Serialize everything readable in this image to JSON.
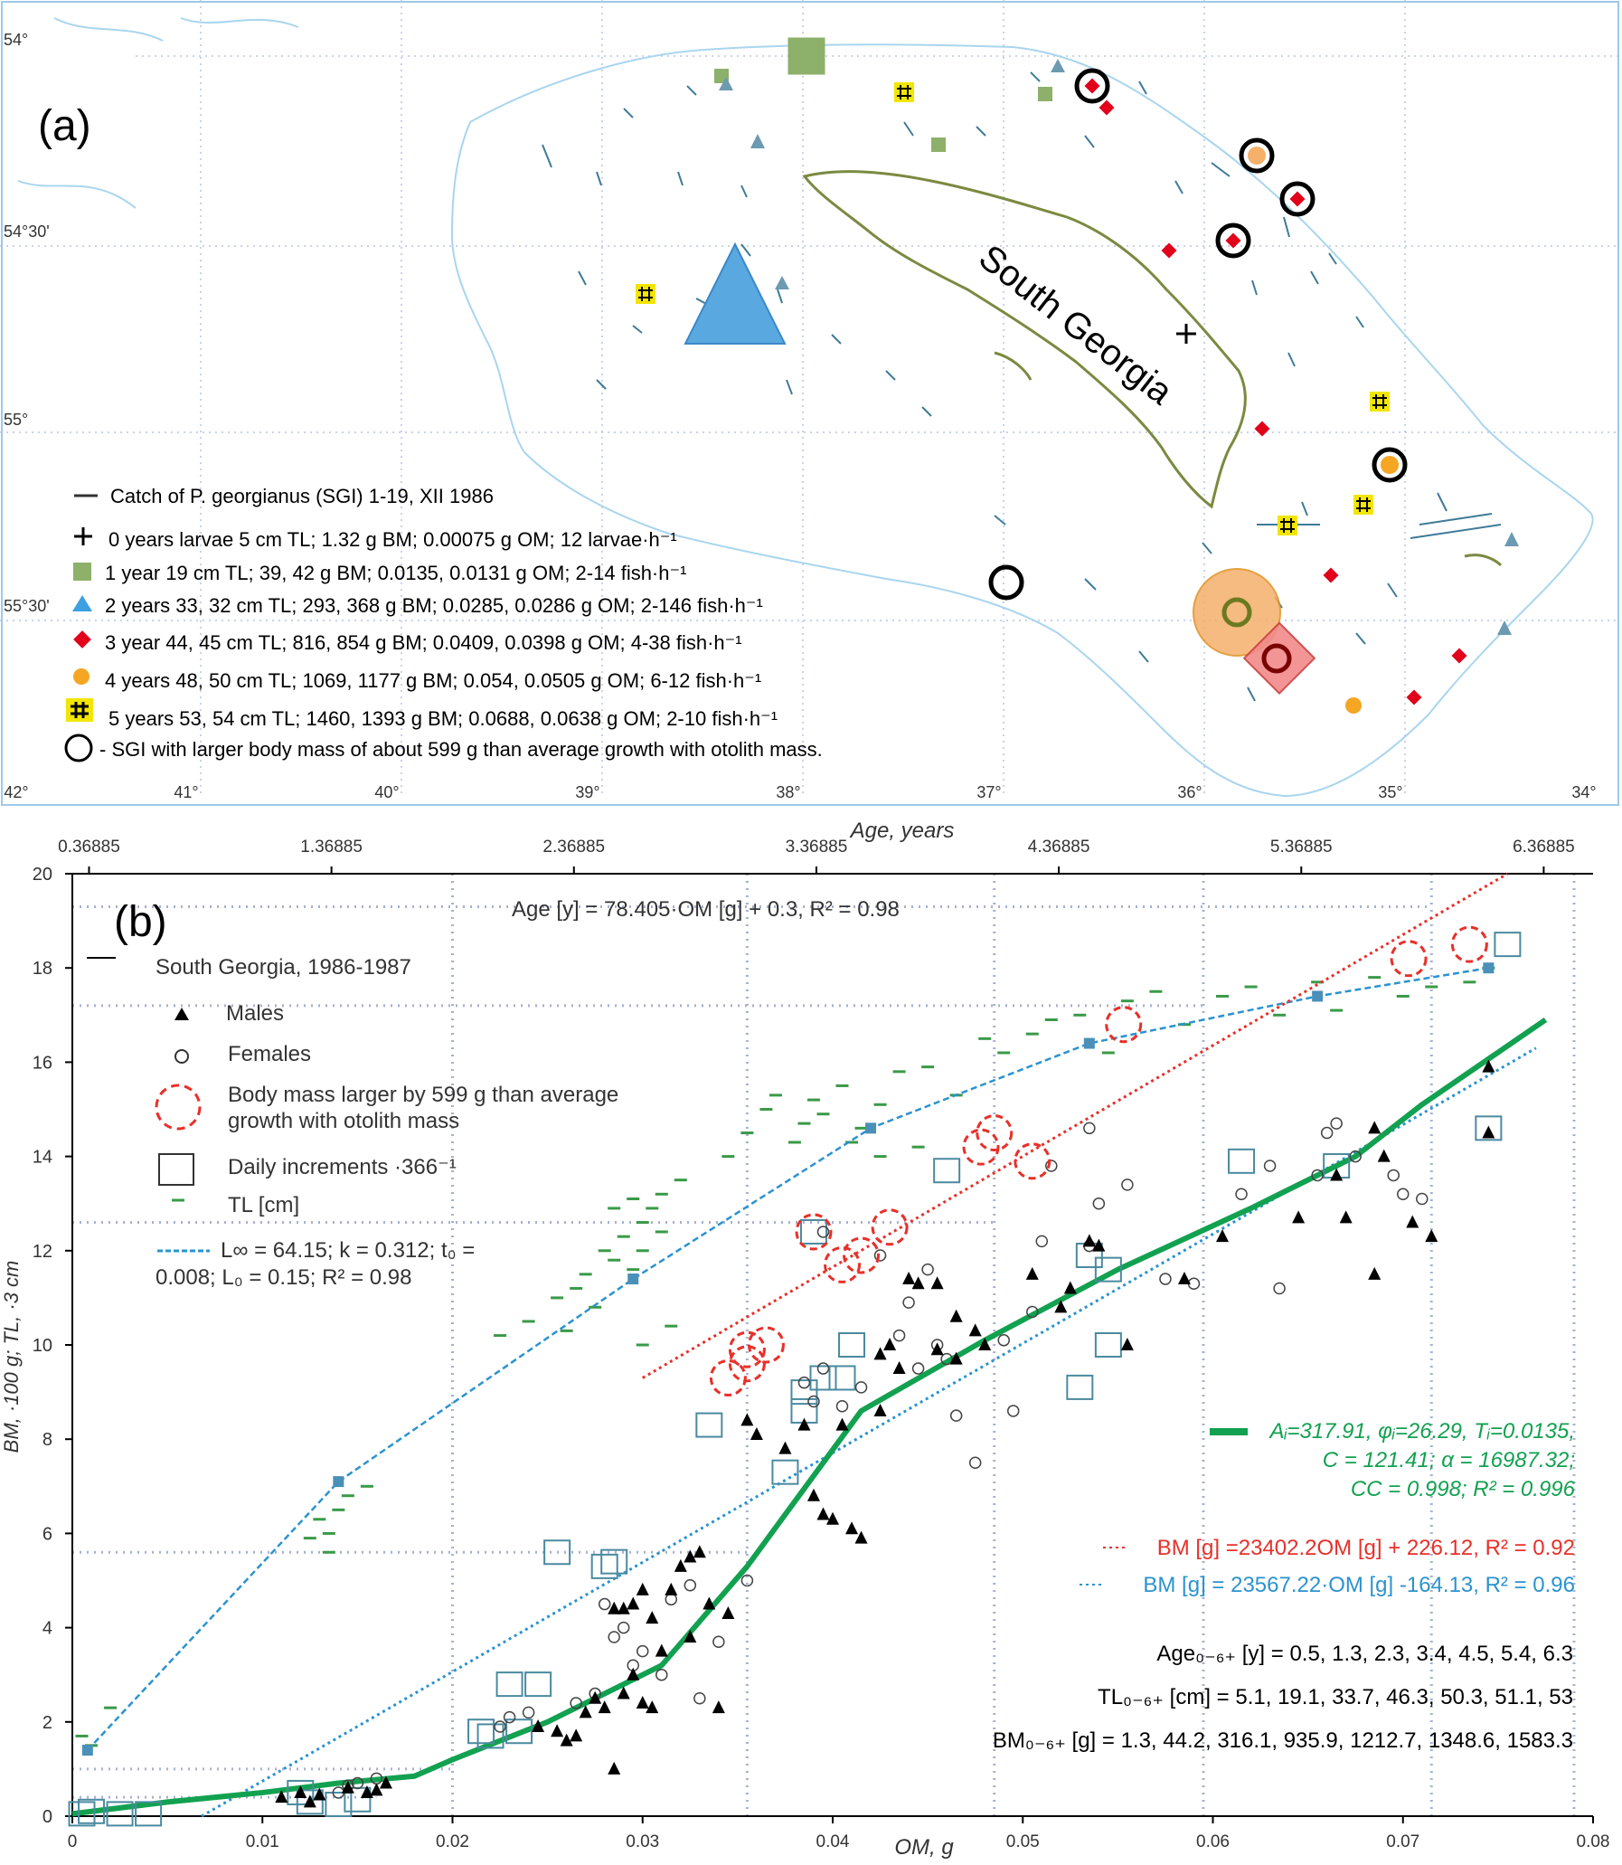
{
  "map": {
    "panel_label": "(a)",
    "island_label": "South Georgia",
    "lat_labels": [
      "54°",
      "54°30'",
      "55°",
      "55°30'"
    ],
    "lon_labels": [
      "42°",
      "41°",
      "40°",
      "39°",
      "38°",
      "37°",
      "36°",
      "35°",
      "34°"
    ],
    "legend": [
      {
        "symbol": "line",
        "color": "#333333",
        "text": "Catch of P. georgianus (SGI) 1-19, XII 1986"
      },
      {
        "symbol": "cross",
        "color": "#000000",
        "text": "0 years larvae 5 cm TL; 1.32 g BM; 0.00075 g OM; 12 larvae·h⁻¹"
      },
      {
        "symbol": "square",
        "color": "#8db06a",
        "text": "1 year 19 cm TL; 39, 42 g BM; 0.0135, 0.0131 g OM; 2-14 fish·h⁻¹"
      },
      {
        "symbol": "triangle",
        "color": "#3b9fe0",
        "text": "2 years 33, 32 cm TL; 293, 368 g BM; 0.0285, 0.0286 g OM; 2-146 fish·h⁻¹"
      },
      {
        "symbol": "diamond",
        "color": "#e2001a",
        "text": "3 year 44, 45 cm TL; 816, 854 g BM; 0.0409, 0.0398 g OM; 4-38 fish·h⁻¹"
      },
      {
        "symbol": "circle",
        "color": "#f5a623",
        "text": "4 years 48, 50 cm TL; 1069, 1177 g BM; 0.054, 0.0505 g OM; 6-12 fish·h⁻¹"
      },
      {
        "symbol": "hash",
        "color": "#f2e600",
        "text": "5 years 53, 54 cm TL; 1460, 1393 g BM; 0.0688, 0.0638 g OM; 2-10 fish·h⁻¹"
      },
      {
        "symbol": "ring",
        "color": "#000000",
        "text": "- SGI with larger body mass of about 599 g than average growth with otolith mass."
      }
    ]
  },
  "chart_data": {
    "type": "scatter",
    "panel_label": "(b)",
    "xlabel": "OM, g",
    "ylabel": "BM, ·100 g;  TL, ·3 cm",
    "top_axis_label": "Age, years",
    "xlim": [
      0,
      0.08
    ],
    "ylim": [
      0,
      20
    ],
    "x_ticks": [
      "0",
      "0.01",
      "0.02",
      "0.03",
      "0.04",
      "0.05",
      "0.06",
      "0.07",
      "0.08"
    ],
    "y_ticks": [
      "0",
      "2",
      "4",
      "6",
      "8",
      "10",
      "12",
      "14",
      "16",
      "18",
      "20"
    ],
    "top_ticks": [
      "0.36885",
      "1.36885",
      "2.36885",
      "3.36885",
      "4.36885",
      "5.36885",
      "6.36885"
    ],
    "age_equation": "Age [y] = 78.405·OM [g] + 0.3, R² = 0.98",
    "legend": {
      "title": "South Georgia, 1986-1987",
      "males": "Males",
      "females": "Females",
      "larger_mass_1": "Body mass larger by 599 g than average",
      "larger_mass_2": "growth with otolith mass",
      "daily": "Daily increments ·366⁻¹",
      "tl": "TL [cm]",
      "vb_1": "L∞ = 64.15; k = 0.312; t₀ =",
      "vb_2": "0.008; L₀ = 0.15; R² = 0.98"
    },
    "model_text_1": "Aᵢ=317.91, φᵢ=26.29, Tᵢ=0.0135,",
    "model_text_2": "C = 121.41; α = 16987.32;",
    "model_text_3": "CC = 0.998; R² = 0.996",
    "red_fit_text": "BM [g] =23402.2OM [g] + 226.12, R² = 0.92",
    "blue_fit_text": "BM [g] = 23567.22·OM [g] -164.13, R² = 0.96",
    "age_values_text": "Age₀₋₆₊ [y] = 0.5, 1.3, 2.3, 3.4, 4.5, 5.4, 6.3",
    "tl_values_text": "TL₀₋₆₊ [cm] = 5.1, 19.1, 33.7, 46.3, 50.3, 51.1, 53",
    "bm_values_text": "BM₀₋₆₊ [g] = 1.3, 44.2, 316.1, 935.9, 1212.7, 1348.6, 1583.3",
    "colors": {
      "model": "#12a150",
      "red_fit": "#e8302a",
      "blue_fit": "#2b93cf",
      "tl": "#3a9a48",
      "grid": "#a7b1d2"
    },
    "model_curve": [
      [
        0,
        0.05
      ],
      [
        0.005,
        0.3
      ],
      [
        0.01,
        0.5
      ],
      [
        0.014,
        0.7
      ],
      [
        0.018,
        0.85
      ],
      [
        0.02,
        1.2
      ],
      [
        0.025,
        2.0
      ],
      [
        0.031,
        3.2
      ],
      [
        0.0355,
        5.3
      ],
      [
        0.0415,
        8.6
      ],
      [
        0.048,
        10.1
      ],
      [
        0.055,
        11.6
      ],
      [
        0.062,
        12.9
      ],
      [
        0.0675,
        14.0
      ],
      [
        0.071,
        15.1
      ],
      [
        0.0775,
        16.9
      ]
    ],
    "red_fit_line": [
      [
        0.03,
        9.3
      ],
      [
        0.0755,
        20
      ]
    ],
    "blue_fit_line": [
      [
        0.0068,
        0
      ],
      [
        0.077,
        16.3
      ]
    ],
    "vb_curve": [
      [
        0.0008,
        1.4
      ],
      [
        0.014,
        7.1
      ],
      [
        0.0295,
        11.4
      ],
      [
        0.042,
        14.6
      ],
      [
        0.0535,
        16.4
      ],
      [
        0.0655,
        17.4
      ],
      [
        0.0745,
        18.0
      ]
    ],
    "males": [
      [
        0.011,
        0.4
      ],
      [
        0.012,
        0.5
      ],
      [
        0.0125,
        0.3
      ],
      [
        0.013,
        0.45
      ],
      [
        0.0145,
        0.6
      ],
      [
        0.0155,
        0.5
      ],
      [
        0.016,
        0.55
      ],
      [
        0.0165,
        0.7
      ],
      [
        0.0245,
        1.9
      ],
      [
        0.0255,
        1.8
      ],
      [
        0.026,
        1.6
      ],
      [
        0.0265,
        1.7
      ],
      [
        0.027,
        2.2
      ],
      [
        0.0275,
        2.5
      ],
      [
        0.028,
        2.3
      ],
      [
        0.0285,
        1.0
      ],
      [
        0.029,
        2.6
      ],
      [
        0.0295,
        3.0
      ],
      [
        0.03,
        2.4
      ],
      [
        0.0305,
        2.3
      ],
      [
        0.031,
        3.5
      ],
      [
        0.0315,
        4.8
      ],
      [
        0.032,
        5.3
      ],
      [
        0.0325,
        5.5
      ],
      [
        0.033,
        5.6
      ],
      [
        0.0335,
        4.5
      ],
      [
        0.0345,
        4.3
      ],
      [
        0.0285,
        4.4
      ],
      [
        0.029,
        4.4
      ],
      [
        0.0295,
        4.5
      ],
      [
        0.03,
        4.8
      ],
      [
        0.0305,
        4.2
      ],
      [
        0.0325,
        3.8
      ],
      [
        0.034,
        2.3
      ],
      [
        0.0355,
        8.4
      ],
      [
        0.036,
        8.1
      ],
      [
        0.0375,
        7.8
      ],
      [
        0.0385,
        8.3
      ],
      [
        0.039,
        6.8
      ],
      [
        0.0395,
        6.4
      ],
      [
        0.04,
        6.3
      ],
      [
        0.0405,
        8.3
      ],
      [
        0.041,
        6.1
      ],
      [
        0.0415,
        5.9
      ],
      [
        0.0425,
        9.8
      ],
      [
        0.043,
        10.0
      ],
      [
        0.0435,
        9.5
      ],
      [
        0.044,
        11.4
      ],
      [
        0.0445,
        11.3
      ],
      [
        0.0455,
        11.3
      ],
      [
        0.0465,
        10.6
      ],
      [
        0.0475,
        10.3
      ],
      [
        0.048,
        10.0
      ],
      [
        0.0505,
        11.5
      ],
      [
        0.052,
        10.8
      ],
      [
        0.0525,
        11.2
      ],
      [
        0.0535,
        12.2
      ],
      [
        0.054,
        12.1
      ],
      [
        0.0555,
        10.0
      ],
      [
        0.0585,
        11.4
      ],
      [
        0.0605,
        12.3
      ],
      [
        0.0645,
        12.7
      ],
      [
        0.0665,
        13.6
      ],
      [
        0.067,
        12.7
      ],
      [
        0.0685,
        14.6
      ],
      [
        0.069,
        14.0
      ],
      [
        0.0685,
        11.5
      ],
      [
        0.0705,
        12.6
      ],
      [
        0.0715,
        12.3
      ],
      [
        0.0745,
        15.9
      ],
      [
        0.0745,
        14.5
      ],
      [
        0.0455,
        9.9
      ],
      [
        0.0465,
        9.7
      ],
      [
        0.0425,
        8.6
      ]
    ],
    "females": [
      [
        0.014,
        0.5
      ],
      [
        0.0145,
        0.65
      ],
      [
        0.015,
        0.7
      ],
      [
        0.016,
        0.8
      ],
      [
        0.0225,
        1.9
      ],
      [
        0.023,
        2.1
      ],
      [
        0.024,
        2.2
      ],
      [
        0.0265,
        2.4
      ],
      [
        0.0275,
        2.6
      ],
      [
        0.028,
        4.5
      ],
      [
        0.0285,
        3.8
      ],
      [
        0.029,
        4.0
      ],
      [
        0.0295,
        3.2
      ],
      [
        0.03,
        3.5
      ],
      [
        0.031,
        3.0
      ],
      [
        0.0315,
        4.6
      ],
      [
        0.0325,
        4.9
      ],
      [
        0.033,
        2.5
      ],
      [
        0.034,
        3.7
      ],
      [
        0.0355,
        5.0
      ],
      [
        0.0385,
        9.2
      ],
      [
        0.039,
        8.8
      ],
      [
        0.0395,
        9.5
      ],
      [
        0.0405,
        8.7
      ],
      [
        0.0415,
        9.1
      ],
      [
        0.0435,
        10.2
      ],
      [
        0.0445,
        9.5
      ],
      [
        0.0455,
        10.0
      ],
      [
        0.046,
        9.7
      ],
      [
        0.0465,
        8.5
      ],
      [
        0.0475,
        7.5
      ],
      [
        0.049,
        10.1
      ],
      [
        0.0495,
        8.6
      ],
      [
        0.0505,
        10.7
      ],
      [
        0.051,
        12.2
      ],
      [
        0.0535,
        12.1
      ],
      [
        0.054,
        13.0
      ],
      [
        0.0555,
        13.4
      ],
      [
        0.0575,
        11.4
      ],
      [
        0.059,
        11.3
      ],
      [
        0.0615,
        13.2
      ],
      [
        0.063,
        13.8
      ],
      [
        0.0635,
        11.2
      ],
      [
        0.0655,
        13.6
      ],
      [
        0.066,
        14.5
      ],
      [
        0.0665,
        14.7
      ],
      [
        0.0675,
        14.0
      ],
      [
        0.0695,
        13.6
      ],
      [
        0.07,
        13.2
      ],
      [
        0.071,
        13.1
      ],
      [
        0.045,
        11.6
      ],
      [
        0.044,
        10.9
      ],
      [
        0.0425,
        11.9
      ],
      [
        0.0395,
        12.4
      ],
      [
        0.0515,
        13.8
      ],
      [
        0.0535,
        14.6
      ]
    ],
    "daily_increments": [
      [
        0.0005,
        0.05
      ],
      [
        0.001,
        0.1
      ],
      [
        0.0025,
        0.05
      ],
      [
        0.004,
        0.05
      ],
      [
        0.012,
        0.5
      ],
      [
        0.0125,
        0.3
      ],
      [
        0.014,
        0.25
      ],
      [
        0.015,
        0.35
      ],
      [
        0.0215,
        1.8
      ],
      [
        0.022,
        1.7
      ],
      [
        0.0235,
        1.8
      ],
      [
        0.023,
        2.8
      ],
      [
        0.0245,
        2.8
      ],
      [
        0.0255,
        5.6
      ],
      [
        0.028,
        5.3
      ],
      [
        0.0285,
        5.4
      ],
      [
        0.0335,
        8.3
      ],
      [
        0.0375,
        7.3
      ],
      [
        0.0385,
        8.6
      ],
      [
        0.0385,
        9.0
      ],
      [
        0.0395,
        9.3
      ],
      [
        0.039,
        12.4
      ],
      [
        0.041,
        10.0
      ],
      [
        0.0405,
        9.3
      ],
      [
        0.046,
        13.7
      ],
      [
        0.053,
        9.1
      ],
      [
        0.0545,
        10.0
      ],
      [
        0.0535,
        11.9
      ],
      [
        0.0545,
        11.6
      ],
      [
        0.0615,
        13.9
      ],
      [
        0.0665,
        13.8
      ],
      [
        0.0745,
        14.6
      ],
      [
        0.0755,
        18.5
      ]
    ],
    "red_circles": [
      [
        0.0345,
        9.3
      ],
      [
        0.0355,
        9.6
      ],
      [
        0.0355,
        9.9
      ],
      [
        0.0365,
        10.0
      ],
      [
        0.039,
        12.4
      ],
      [
        0.0405,
        11.7
      ],
      [
        0.0415,
        11.9
      ],
      [
        0.043,
        12.5
      ],
      [
        0.0478,
        14.2
      ],
      [
        0.0485,
        14.5
      ],
      [
        0.0505,
        13.9
      ],
      [
        0.0553,
        16.8
      ],
      [
        0.0703,
        18.2
      ],
      [
        0.0735,
        18.5
      ]
    ],
    "tl_marks": [
      [
        0.0005,
        1.7
      ],
      [
        0.001,
        1.5
      ],
      [
        0.002,
        2.3
      ],
      [
        0.013,
        6.3
      ],
      [
        0.014,
        6.5
      ],
      [
        0.0145,
        6.8
      ],
      [
        0.0155,
        7.0
      ],
      [
        0.0135,
        6.0
      ],
      [
        0.0125,
        5.9
      ],
      [
        0.0135,
        5.6
      ],
      [
        0.0225,
        10.2
      ],
      [
        0.024,
        10.5
      ],
      [
        0.0255,
        11.0
      ],
      [
        0.027,
        11.5
      ],
      [
        0.028,
        12.0
      ],
      [
        0.029,
        12.3
      ],
      [
        0.03,
        12.6
      ],
      [
        0.0305,
        12.9
      ],
      [
        0.031,
        13.2
      ],
      [
        0.032,
        13.5
      ],
      [
        0.0285,
        11.8
      ],
      [
        0.0265,
        11.2
      ],
      [
        0.0275,
        10.8
      ],
      [
        0.0295,
        11.6
      ],
      [
        0.03,
        12.0
      ],
      [
        0.031,
        12.4
      ],
      [
        0.0315,
        10.4
      ],
      [
        0.03,
        10.0
      ],
      [
        0.026,
        10.3
      ],
      [
        0.0285,
        12.9
      ],
      [
        0.0295,
        13.1
      ],
      [
        0.0345,
        14.0
      ],
      [
        0.0355,
        14.5
      ],
      [
        0.0365,
        15.0
      ],
      [
        0.037,
        15.3
      ],
      [
        0.038,
        14.3
      ],
      [
        0.0385,
        14.7
      ],
      [
        0.039,
        15.2
      ],
      [
        0.0405,
        15.5
      ],
      [
        0.041,
        14.3
      ],
      [
        0.0425,
        15.1
      ],
      [
        0.0435,
        15.8
      ],
      [
        0.045,
        15.9
      ],
      [
        0.0465,
        15.3
      ],
      [
        0.048,
        16.5
      ],
      [
        0.049,
        16.2
      ],
      [
        0.0505,
        16.6
      ],
      [
        0.0515,
        16.9
      ],
      [
        0.053,
        17.0
      ],
      [
        0.0545,
        16.2
      ],
      [
        0.0555,
        17.3
      ],
      [
        0.057,
        17.5
      ],
      [
        0.0585,
        16.8
      ],
      [
        0.0605,
        17.4
      ],
      [
        0.062,
        17.6
      ],
      [
        0.0635,
        17.0
      ],
      [
        0.0655,
        17.7
      ],
      [
        0.0665,
        17.1
      ],
      [
        0.0685,
        17.8
      ],
      [
        0.07,
        17.4
      ],
      [
        0.0715,
        17.6
      ],
      [
        0.0735,
        17.7
      ],
      [
        0.0745,
        18.0
      ],
      [
        0.0425,
        14.0
      ],
      [
        0.0445,
        14.2
      ],
      [
        0.0395,
        14.9
      ],
      [
        0.0415,
        14.6
      ]
    ]
  }
}
